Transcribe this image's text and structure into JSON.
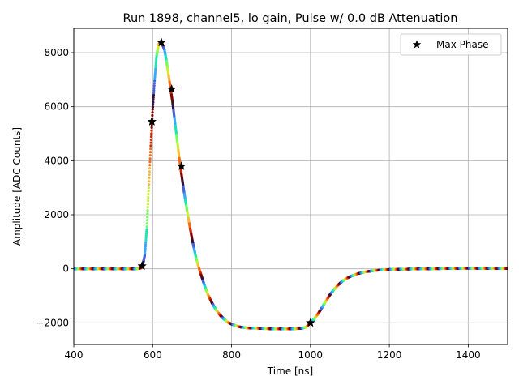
{
  "chart_data": {
    "type": "scatter",
    "title": "Run 1898, channel5, lo gain, Pulse w/ 0.0 dB Attenuation",
    "xlabel": "Time [ns]",
    "ylabel": "Amplitude [ADC Counts]",
    "xlim": [
      400,
      1500
    ],
    "ylim": [
      -2800,
      8900
    ],
    "xticks": [
      400,
      600,
      800,
      1000,
      1200,
      1400
    ],
    "yticks": [
      -2000,
      0,
      2000,
      4000,
      6000,
      8000
    ],
    "xtick_labels": [
      "400",
      "600",
      "800",
      "1000",
      "1200",
      "1400"
    ],
    "ytick_labels": [
      "−2000",
      "0",
      "2000",
      "4000",
      "6000",
      "8000"
    ],
    "grid": true,
    "legend_position": "top-right",
    "colormap": [
      "#30123b",
      "#4662d7",
      "#36aaf9",
      "#1ae4b6",
      "#72fe5e",
      "#c7ef34",
      "#faba39",
      "#f66b19",
      "#cb2a04",
      "#7a0403"
    ],
    "series": [
      {
        "kind": "waveform",
        "x": [
          400,
          500,
          560,
          570,
          575,
          580,
          585,
          590,
          595,
          600,
          605,
          610,
          615,
          620,
          625,
          630,
          635,
          640,
          645,
          650,
          655,
          660,
          665,
          670,
          680,
          690,
          700,
          710,
          720,
          730,
          740,
          750,
          760,
          770,
          780,
          790,
          800,
          820,
          840,
          860,
          880,
          900,
          920,
          940,
          960,
          980,
          990,
          1000,
          1010,
          1020,
          1030,
          1040,
          1050,
          1060,
          1070,
          1080,
          1090,
          1100,
          1120,
          1140,
          1160,
          1180,
          1200,
          1250,
          1300,
          1350,
          1400,
          1450,
          1500
        ],
        "y": [
          0,
          0,
          0,
          20,
          150,
          500,
          1500,
          3000,
          4500,
          5900,
          7000,
          7900,
          8300,
          8400,
          8300,
          8100,
          7700,
          7200,
          6700,
          6200,
          5600,
          5000,
          4400,
          3800,
          2800,
          1900,
          1100,
          400,
          -100,
          -550,
          -950,
          -1250,
          -1500,
          -1700,
          -1850,
          -1970,
          -2050,
          -2150,
          -2190,
          -2200,
          -2210,
          -2220,
          -2225,
          -2225,
          -2220,
          -2200,
          -2150,
          -2000,
          -1850,
          -1650,
          -1420,
          -1180,
          -950,
          -760,
          -600,
          -470,
          -370,
          -290,
          -180,
          -110,
          -70,
          -40,
          -25,
          -10,
          0,
          10,
          20,
          15,
          10
        ]
      },
      {
        "name": "Max Phase",
        "kind": "marker",
        "marker": "star",
        "color": "#000000",
        "x": [
          573,
          598,
          622,
          648,
          673,
          1000
        ],
        "y": [
          100,
          5450,
          8380,
          6650,
          3800,
          -2000
        ]
      }
    ]
  }
}
